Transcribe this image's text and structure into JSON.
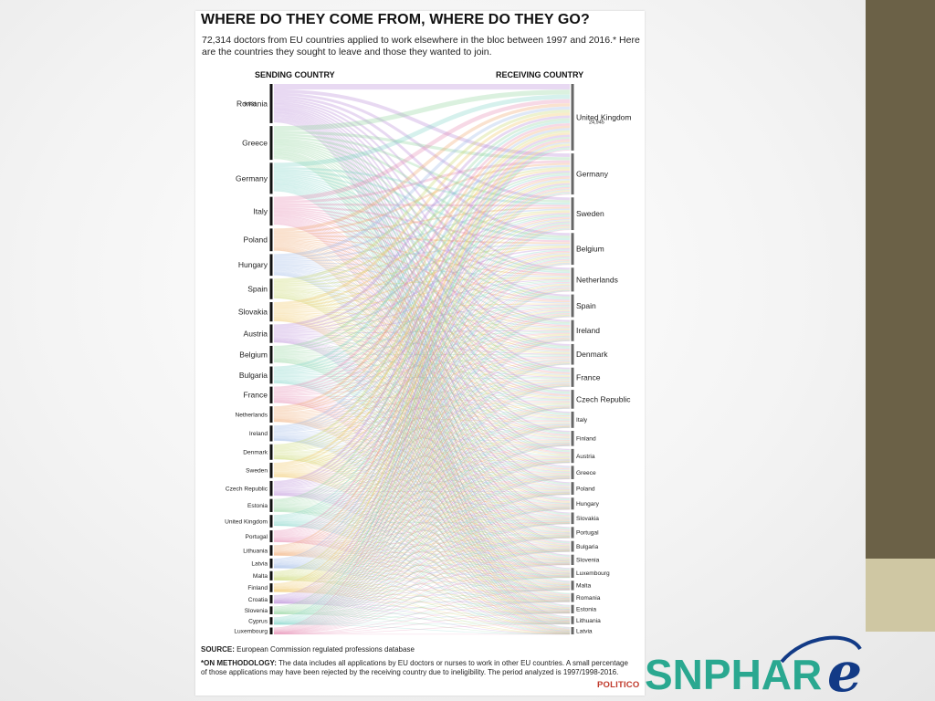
{
  "infographic": {
    "title": "WHERE DO THEY COME FROM, WHERE DO THEY GO?",
    "subtitle": "72,314 doctors from EU countries applied to work elsewhere in the bloc between 1997 and 2016.* Here are the countries they sought to leave and those they wanted to join.",
    "sending_header": "SENDING COUNTRY",
    "receiving_header": "RECEIVING COUNTRY",
    "sending": [
      {
        "name": "Romania",
        "weight": 9831,
        "value_label": "9,831"
      },
      {
        "name": "Greece",
        "weight": 7300
      },
      {
        "name": "Germany",
        "weight": 6200
      },
      {
        "name": "Italy",
        "weight": 5300
      },
      {
        "name": "Poland",
        "weight": 3300
      },
      {
        "name": "Hungary",
        "weight": 3000
      },
      {
        "name": "Spain",
        "weight": 2700
      },
      {
        "name": "Slovakia",
        "weight": 2400
      },
      {
        "name": "Austria",
        "weight": 2200
      },
      {
        "name": "Belgium",
        "weight": 2000
      },
      {
        "name": "Bulgaria",
        "weight": 1900
      },
      {
        "name": "France",
        "weight": 1800
      },
      {
        "name": "Netherlands",
        "weight": 1700
      },
      {
        "name": "Ireland",
        "weight": 1600
      },
      {
        "name": "Denmark",
        "weight": 1550
      },
      {
        "name": "Sweden",
        "weight": 1500
      },
      {
        "name": "Czech Republic",
        "weight": 1450
      },
      {
        "name": "Estonia",
        "weight": 1100
      },
      {
        "name": "United Kingdom",
        "weight": 1000
      },
      {
        "name": "Portugal",
        "weight": 900
      },
      {
        "name": "Lithuania",
        "weight": 700
      },
      {
        "name": "Latvia",
        "weight": 600
      },
      {
        "name": "Malta",
        "weight": 550
      },
      {
        "name": "Finland",
        "weight": 500
      },
      {
        "name": "Croatia",
        "weight": 450
      },
      {
        "name": "Slovenia",
        "weight": 400
      },
      {
        "name": "Cyprus",
        "weight": 350
      },
      {
        "name": "Luxembourg",
        "weight": 300
      }
    ],
    "receiving": [
      {
        "name": "United Kingdom",
        "weight": 24945,
        "value_label": "24,945"
      },
      {
        "name": "Germany",
        "weight": 9500
      },
      {
        "name": "Sweden",
        "weight": 6000
      },
      {
        "name": "Belgium",
        "weight": 5700
      },
      {
        "name": "Netherlands",
        "weight": 3200
      },
      {
        "name": "Spain",
        "weight": 2900
      },
      {
        "name": "Ireland",
        "weight": 2500
      },
      {
        "name": "Denmark",
        "weight": 2400
      },
      {
        "name": "France",
        "weight": 2100
      },
      {
        "name": "Czech Republic",
        "weight": 2000
      },
      {
        "name": "Italy",
        "weight": 1500
      },
      {
        "name": "Finland",
        "weight": 1300
      },
      {
        "name": "Austria",
        "weight": 1100
      },
      {
        "name": "Greece",
        "weight": 1000
      },
      {
        "name": "Poland",
        "weight": 900
      },
      {
        "name": "Hungary",
        "weight": 800
      },
      {
        "name": "Slovakia",
        "weight": 750
      },
      {
        "name": "Portugal",
        "weight": 700
      },
      {
        "name": "Bulgaria",
        "weight": 650
      },
      {
        "name": "Slovenia",
        "weight": 600
      },
      {
        "name": "Luxembourg",
        "weight": 550
      },
      {
        "name": "Malta",
        "weight": 500
      },
      {
        "name": "Romania",
        "weight": 450
      },
      {
        "name": "Estonia",
        "weight": 400
      },
      {
        "name": "Lithuania",
        "weight": 350
      },
      {
        "name": "Latvia",
        "weight": 300
      }
    ],
    "colors": [
      "#b98ad6",
      "#8fd49a",
      "#7fd4c8",
      "#e58ab0",
      "#f1a46a",
      "#9bb6e6",
      "#c6d86a",
      "#f0c45c"
    ],
    "source_label": "SOURCE:",
    "source_text": "European Commission regulated professions database",
    "methodology_label": "*ON METHODOLOGY:",
    "methodology_text": "The data includes all applications by EU doctors or nurses to work in other EU countries. A small percentage of those applications may have been rejected by the receiving country due to ineligibility. The period analyzed is 1997/1998-2016.",
    "publisher": "POLITICO"
  },
  "slide": {
    "logo_text": "SNPHAR",
    "logo_script": "e",
    "logo_color": "#2aa890",
    "logo_script_color": "#123a86",
    "sidebar_dark": "#6b6147",
    "sidebar_light": "#cfc7a3"
  }
}
